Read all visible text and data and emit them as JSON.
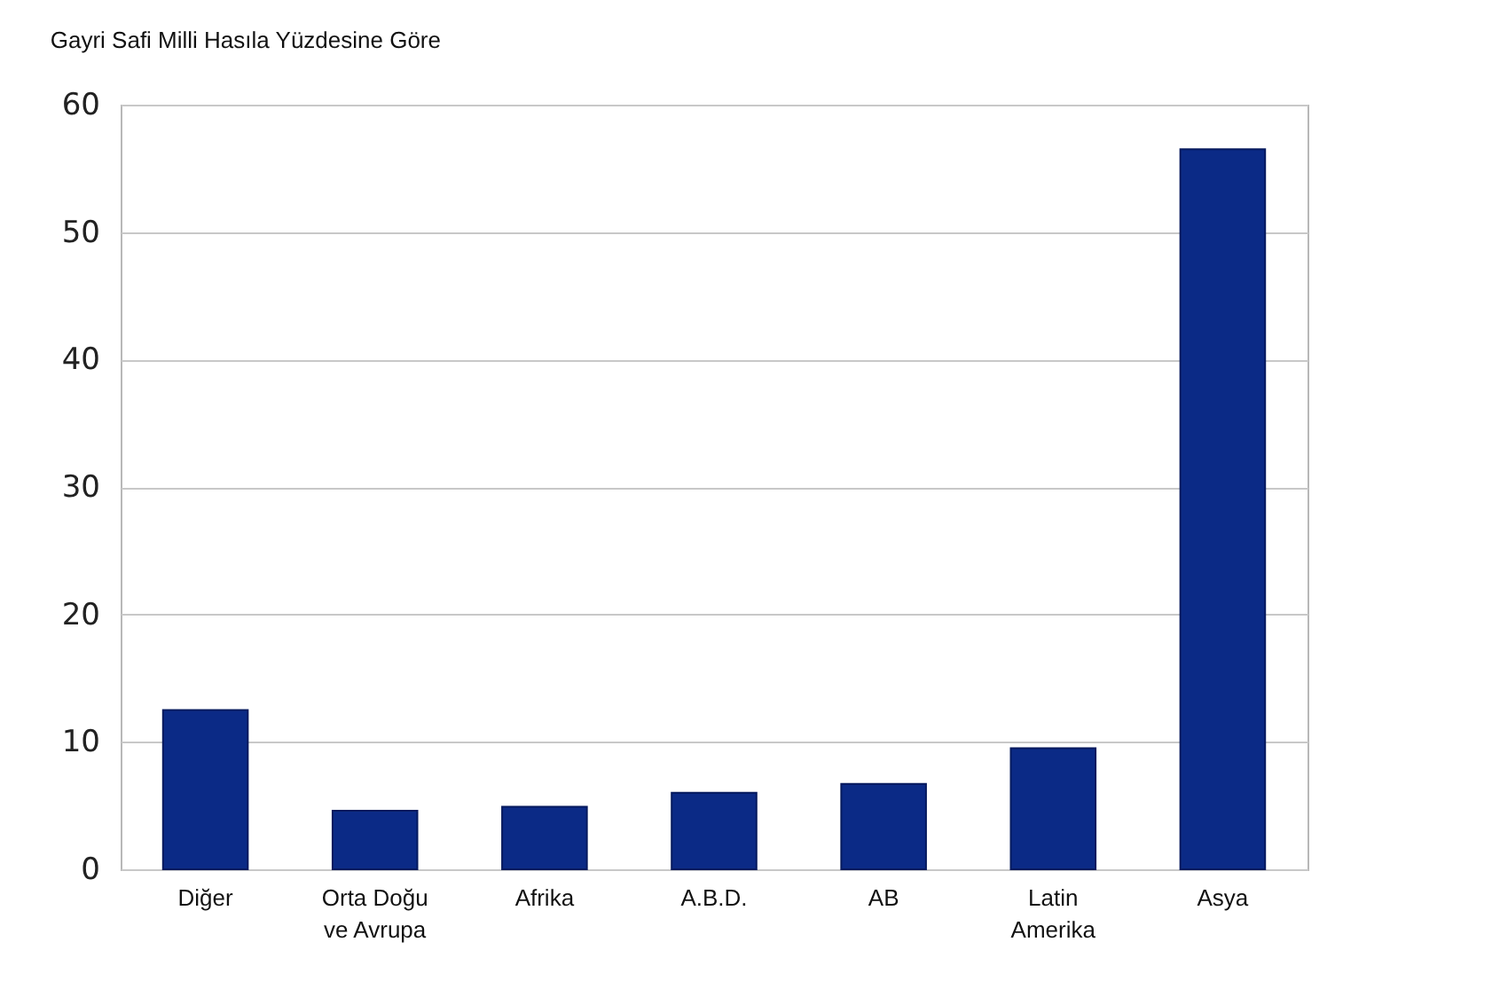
{
  "chart_data": {
    "type": "bar",
    "title": "Gayri Safi Milli Hasıla Yüzdesine Göre",
    "categories": [
      "Diğer",
      "Orta Doğu\nve Avrupa",
      "Afrika",
      "A.B.D.",
      "AB",
      "Latin\nAmerika",
      "Asya"
    ],
    "values": [
      12.5,
      4.6,
      4.9,
      6.0,
      6.7,
      9.5,
      56.5
    ],
    "color": "#0b2a86",
    "ylim": [
      0,
      60
    ],
    "yticks": [
      0,
      10,
      20,
      30,
      40,
      50,
      60
    ],
    "grid": "y"
  }
}
